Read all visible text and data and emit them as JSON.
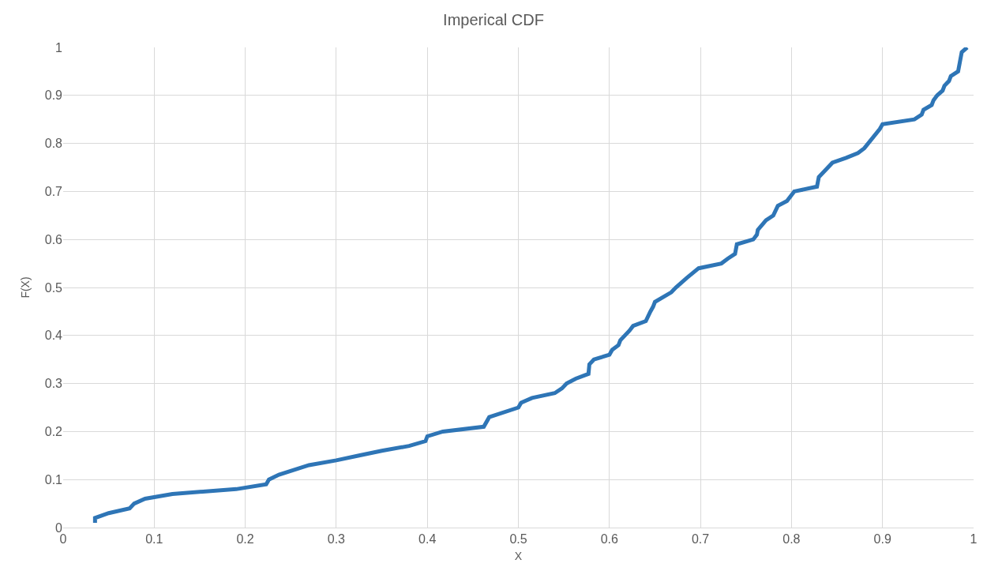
{
  "chart_data": {
    "type": "line",
    "title": "Imperical CDF",
    "xlabel": "X",
    "ylabel": "F(X)",
    "x": [
      0.035,
      0.035,
      0.05,
      0.073,
      0.078,
      0.09,
      0.12,
      0.19,
      0.223,
      0.226,
      0.237,
      0.27,
      0.3,
      0.325,
      0.35,
      0.38,
      0.398,
      0.4,
      0.417,
      0.462,
      0.468,
      0.5,
      0.503,
      0.515,
      0.54,
      0.548,
      0.553,
      0.563,
      0.577,
      0.578,
      0.583,
      0.6,
      0.603,
      0.61,
      0.612,
      0.622,
      0.626,
      0.64,
      0.645,
      0.648,
      0.65,
      0.668,
      0.673,
      0.685,
      0.698,
      0.723,
      0.73,
      0.738,
      0.74,
      0.758,
      0.762,
      0.763,
      0.772,
      0.78,
      0.785,
      0.795,
      0.803,
      0.828,
      0.83,
      0.845,
      0.86,
      0.873,
      0.88,
      0.897,
      0.9,
      0.935,
      0.943,
      0.945,
      0.954,
      0.956,
      0.96,
      0.966,
      0.968,
      0.973,
      0.975,
      0.983,
      0.985,
      0.987,
      0.993
    ],
    "series": [
      {
        "color": "#2e75b6",
        "values": [
          0.01,
          0.02,
          0.03,
          0.04,
          0.05,
          0.06,
          0.07,
          0.08,
          0.09,
          0.1,
          0.11,
          0.13,
          0.14,
          0.15,
          0.16,
          0.17,
          0.18,
          0.19,
          0.2,
          0.21,
          0.23,
          0.25,
          0.26,
          0.27,
          0.28,
          0.29,
          0.3,
          0.31,
          0.32,
          0.34,
          0.35,
          0.36,
          0.37,
          0.38,
          0.39,
          0.41,
          0.42,
          0.43,
          0.45,
          0.46,
          0.47,
          0.49,
          0.5,
          0.52,
          0.54,
          0.55,
          0.56,
          0.57,
          0.59,
          0.6,
          0.61,
          0.62,
          0.64,
          0.65,
          0.67,
          0.68,
          0.7,
          0.71,
          0.73,
          0.76,
          0.77,
          0.78,
          0.79,
          0.83,
          0.84,
          0.85,
          0.86,
          0.87,
          0.88,
          0.89,
          0.9,
          0.91,
          0.92,
          0.93,
          0.94,
          0.95,
          0.97,
          0.99,
          1.0
        ]
      }
    ],
    "xlim": [
      0,
      1
    ],
    "xticks": [
      0,
      0.1,
      0.2,
      0.3,
      0.4,
      0.5,
      0.6,
      0.7,
      0.8,
      0.9,
      1
    ],
    "ylim": [
      0,
      1
    ],
    "yticks": [
      0,
      0.1,
      0.2,
      0.3,
      0.4,
      0.5,
      0.6,
      0.7,
      0.8,
      0.9,
      1
    ],
    "grid": true,
    "marker": "none",
    "line_style": "solid"
  }
}
